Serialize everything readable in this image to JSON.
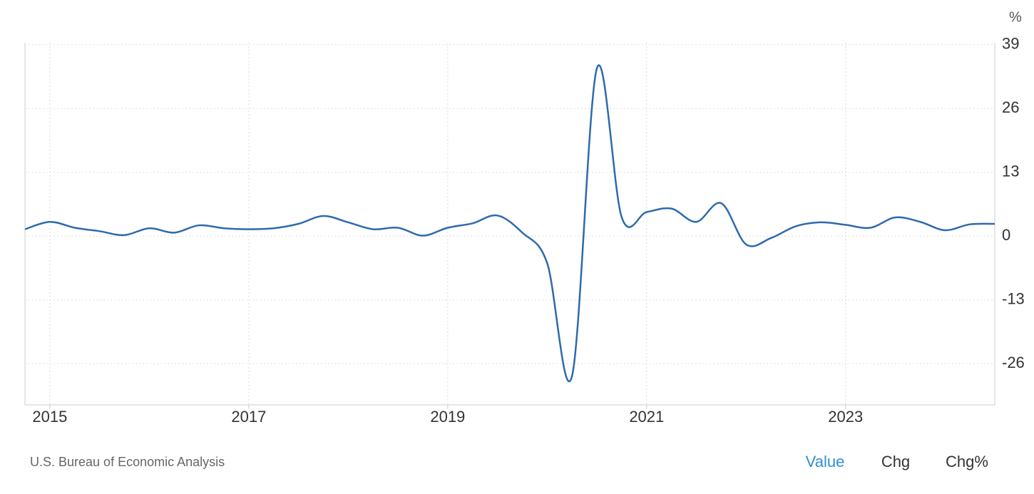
{
  "chart_data": {
    "type": "line",
    "y_unit": "%",
    "x": [
      2014.75,
      2015.0,
      2015.25,
      2015.5,
      2015.75,
      2016.0,
      2016.25,
      2016.5,
      2016.75,
      2017.0,
      2017.25,
      2017.5,
      2017.75,
      2018.0,
      2018.25,
      2018.5,
      2018.75,
      2019.0,
      2019.25,
      2019.5,
      2019.75,
      2020.0,
      2020.25,
      2020.5,
      2020.75,
      2021.0,
      2021.25,
      2021.5,
      2021.75,
      2022.0,
      2022.25,
      2022.5,
      2022.75,
      2023.0,
      2023.25,
      2023.5,
      2023.75,
      2024.0,
      2024.25,
      2024.5
    ],
    "series": [
      {
        "color": "#2e6aad",
        "values": [
          1.4,
          2.9,
          1.7,
          1.0,
          0.2,
          1.6,
          0.7,
          2.2,
          1.6,
          1.4,
          1.6,
          2.5,
          4.1,
          2.8,
          1.4,
          1.7,
          0.1,
          1.7,
          2.6,
          4.2,
          0.7,
          -5.5,
          -28.5,
          34.2,
          3.8,
          4.9,
          5.6,
          2.9,
          6.7,
          -1.7,
          -0.4,
          2.0,
          2.8,
          2.3,
          1.7,
          3.8,
          2.9,
          1.2,
          2.4,
          2.5
        ]
      }
    ],
    "xlim": [
      2014.75,
      2024.5
    ],
    "xticks": [
      2015,
      2017,
      2019,
      2021,
      2023
    ],
    "ylim": [
      -34.4,
      39.4
    ],
    "yticks": [
      -26,
      -13,
      0,
      13,
      26,
      39
    ],
    "grid": true
  },
  "footer": {
    "source": "U.S. Bureau of Economic Analysis",
    "tabs": [
      "Value",
      "Chg",
      "Chg%"
    ],
    "active_tab": 0
  }
}
